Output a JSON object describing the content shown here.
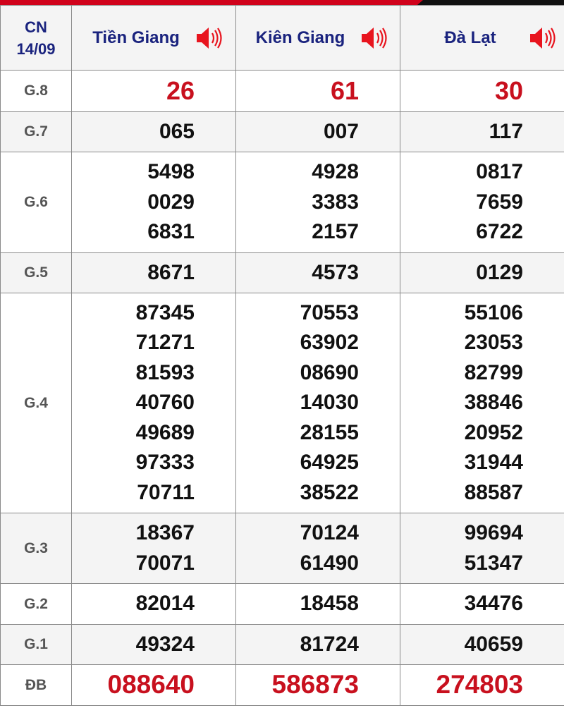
{
  "header": {
    "day": "CN",
    "date": "14/09",
    "provinces": [
      "Tiền Giang",
      "Kiên Giang",
      "Đà Lạt"
    ]
  },
  "colors": {
    "accent": "#c8101e",
    "header_text": "#1a237e"
  },
  "icons": {
    "speaker": "speaker-icon"
  },
  "rows": [
    {
      "label": "G.8",
      "values": [
        [
          "26"
        ],
        [
          "61"
        ],
        [
          "30"
        ]
      ]
    },
    {
      "label": "G.7",
      "values": [
        [
          "065"
        ],
        [
          "007"
        ],
        [
          "117"
        ]
      ]
    },
    {
      "label": "G.6",
      "values": [
        [
          "5498",
          "0029",
          "6831"
        ],
        [
          "4928",
          "3383",
          "2157"
        ],
        [
          "0817",
          "7659",
          "6722"
        ]
      ]
    },
    {
      "label": "G.5",
      "values": [
        [
          "8671"
        ],
        [
          "4573"
        ],
        [
          "0129"
        ]
      ]
    },
    {
      "label": "G.4",
      "values": [
        [
          "87345",
          "71271",
          "81593",
          "40760",
          "49689",
          "97333",
          "70711"
        ],
        [
          "70553",
          "63902",
          "08690",
          "14030",
          "28155",
          "64925",
          "38522"
        ],
        [
          "55106",
          "23053",
          "82799",
          "38846",
          "20952",
          "31944",
          "88587"
        ]
      ]
    },
    {
      "label": "G.3",
      "values": [
        [
          "18367",
          "70071"
        ],
        [
          "70124",
          "61490"
        ],
        [
          "99694",
          "51347"
        ]
      ]
    },
    {
      "label": "G.2",
      "values": [
        [
          "82014"
        ],
        [
          "18458"
        ],
        [
          "34476"
        ]
      ]
    },
    {
      "label": "G.1",
      "values": [
        [
          "49324"
        ],
        [
          "81724"
        ],
        [
          "40659"
        ]
      ]
    },
    {
      "label": "ĐB",
      "values": [
        [
          "088640"
        ],
        [
          "586873"
        ],
        [
          "274803"
        ]
      ]
    }
  ]
}
